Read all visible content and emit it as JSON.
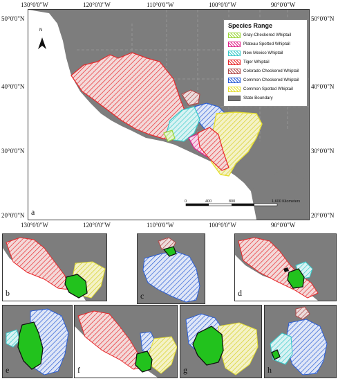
{
  "main_map": {
    "legend": {
      "title": "Species Range",
      "items": [
        {
          "label": "Gray-Checkered Whiptail",
          "color": "#9bd63a"
        },
        {
          "label": "Plateau Spotted Whiptail",
          "color": "#e0218a"
        },
        {
          "label": "New Mexico Whiptail",
          "color": "#39c9c9"
        },
        {
          "label": "Tiger Whiptail",
          "color": "#e8292c"
        },
        {
          "label": "Colorado Checkered Whiptail",
          "color": "#b04a4a"
        },
        {
          "label": "Common Checkered Whiptail",
          "color": "#2c5fd6"
        },
        {
          "label": "Common Spotted Whiptail",
          "color": "#e6e033"
        },
        {
          "label": "State Boundary",
          "color": "#7a7a7a"
        }
      ]
    },
    "north_label": "N",
    "scale_labels": [
      "0",
      "400",
      "800",
      "1,600 Kilometers"
    ],
    "lon_top": [
      "130°0'0\"W",
      "120°0'0\"W",
      "110°0'0\"W",
      "100°0'0\"W",
      "90°0'0\"W"
    ],
    "lon_bottom": [
      "130°0'0\"W",
      "120°0'0\"W",
      "110°0'0\"W",
      "100°0'0\"W",
      "90°0'0\"W"
    ],
    "lat_left": [
      "50°0'0\"N",
      "40°0'0\"N",
      "30°0'0\"N",
      "20°0'0\"N"
    ],
    "lat_right": [
      "50°0'0\"N",
      "40°0'0\"N",
      "30°0'0\"N",
      "20°0'0\"N"
    ],
    "panel_label": "a"
  },
  "panels": [
    "b",
    "c",
    "d",
    "e",
    "f",
    "g",
    "h"
  ],
  "colors": {
    "land": "#7d7d7d",
    "ocean": "#ffffff",
    "highlight": "#22c21d"
  }
}
